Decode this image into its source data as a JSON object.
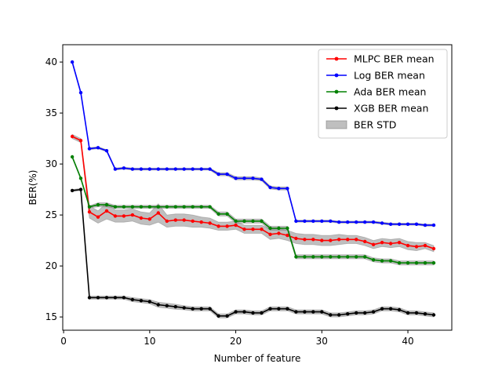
{
  "chart_data": {
    "type": "line",
    "title": "",
    "xlabel": "Number of feature",
    "ylabel": "BER(%)",
    "xlim": [
      -0.1,
      45.1
    ],
    "ylim": [
      13.7,
      41.7
    ],
    "xticks": [
      0,
      10,
      20,
      30,
      40
    ],
    "yticks": [
      15,
      20,
      25,
      30,
      35,
      40
    ],
    "grid": false,
    "legend_position": "top-right",
    "x": [
      1,
      2,
      3,
      4,
      5,
      6,
      7,
      8,
      9,
      10,
      11,
      12,
      13,
      14,
      15,
      16,
      17,
      18,
      19,
      20,
      21,
      22,
      23,
      24,
      25,
      26,
      27,
      28,
      29,
      30,
      31,
      32,
      33,
      34,
      35,
      36,
      37,
      38,
      39,
      40,
      41,
      42,
      43
    ],
    "series": [
      {
        "name": "MLPC BER mean",
        "color": "#ff0000",
        "values": [
          32.7,
          32.3,
          25.3,
          24.8,
          25.4,
          24.9,
          24.9,
          25.0,
          24.7,
          24.6,
          25.2,
          24.4,
          24.5,
          24.5,
          24.4,
          24.3,
          24.2,
          23.9,
          23.9,
          24.0,
          23.6,
          23.6,
          23.6,
          23.1,
          23.2,
          23.0,
          22.7,
          22.6,
          22.6,
          22.5,
          22.5,
          22.6,
          22.6,
          22.6,
          22.4,
          22.1,
          22.3,
          22.2,
          22.3,
          22.0,
          21.9,
          22.0,
          21.7
        ],
        "std": [
          0.2,
          0.2,
          0.6,
          0.6,
          0.8,
          0.6,
          0.6,
          0.6,
          0.6,
          0.6,
          0.9,
          0.6,
          0.6,
          0.6,
          0.6,
          0.5,
          0.5,
          0.4,
          0.4,
          0.4,
          0.4,
          0.4,
          0.4,
          0.5,
          0.5,
          0.5,
          0.5,
          0.5,
          0.5,
          0.5,
          0.5,
          0.5,
          0.4,
          0.4,
          0.4,
          0.4,
          0.4,
          0.4,
          0.4,
          0.4,
          0.4,
          0.3,
          0.3
        ]
      },
      {
        "name": "Log BER mean",
        "color": "#0000ff",
        "values": [
          40.0,
          37.0,
          31.5,
          31.6,
          31.3,
          29.5,
          29.6,
          29.5,
          29.5,
          29.5,
          29.5,
          29.5,
          29.5,
          29.5,
          29.5,
          29.5,
          29.5,
          29.0,
          29.0,
          28.6,
          28.6,
          28.6,
          28.5,
          27.7,
          27.6,
          27.6,
          24.4,
          24.4,
          24.4,
          24.4,
          24.4,
          24.3,
          24.3,
          24.3,
          24.3,
          24.3,
          24.2,
          24.1,
          24.1,
          24.1,
          24.1,
          24.0,
          24.0
        ],
        "std": [
          0.1,
          0.1,
          0.1,
          0.1,
          0.1,
          0.1,
          0.1,
          0.1,
          0.1,
          0.1,
          0.1,
          0.1,
          0.1,
          0.1,
          0.1,
          0.1,
          0.1,
          0.15,
          0.15,
          0.15,
          0.15,
          0.15,
          0.15,
          0.15,
          0.15,
          0.15,
          0.1,
          0.1,
          0.1,
          0.1,
          0.1,
          0.1,
          0.1,
          0.1,
          0.1,
          0.1,
          0.1,
          0.1,
          0.1,
          0.1,
          0.1,
          0.1,
          0.1
        ]
      },
      {
        "name": "Ada BER mean",
        "color": "#008000",
        "values": [
          30.7,
          28.6,
          25.8,
          26.0,
          26.0,
          25.8,
          25.8,
          25.8,
          25.8,
          25.8,
          25.8,
          25.8,
          25.8,
          25.8,
          25.8,
          25.8,
          25.8,
          25.1,
          25.1,
          24.4,
          24.4,
          24.4,
          24.4,
          23.7,
          23.7,
          23.7,
          20.9,
          20.9,
          20.9,
          20.9,
          20.9,
          20.9,
          20.9,
          20.9,
          20.9,
          20.6,
          20.5,
          20.5,
          20.3,
          20.3,
          20.3,
          20.3,
          20.3
        ],
        "std": [
          0.1,
          0.1,
          0.1,
          0.2,
          0.2,
          0.15,
          0.15,
          0.15,
          0.15,
          0.15,
          0.15,
          0.15,
          0.15,
          0.15,
          0.15,
          0.15,
          0.15,
          0.2,
          0.2,
          0.2,
          0.2,
          0.2,
          0.2,
          0.2,
          0.2,
          0.2,
          0.2,
          0.2,
          0.2,
          0.2,
          0.2,
          0.2,
          0.2,
          0.2,
          0.2,
          0.2,
          0.2,
          0.2,
          0.2,
          0.2,
          0.2,
          0.2,
          0.2
        ]
      },
      {
        "name": "XGB BER mean",
        "color": "#000000",
        "values": [
          27.4,
          27.5,
          16.9,
          16.9,
          16.9,
          16.9,
          16.9,
          16.7,
          16.6,
          16.5,
          16.2,
          16.1,
          16.0,
          15.9,
          15.8,
          15.8,
          15.8,
          15.1,
          15.1,
          15.5,
          15.5,
          15.4,
          15.4,
          15.8,
          15.8,
          15.8,
          15.5,
          15.5,
          15.5,
          15.5,
          15.2,
          15.2,
          15.3,
          15.4,
          15.4,
          15.5,
          15.8,
          15.8,
          15.7,
          15.4,
          15.4,
          15.3,
          15.2
        ],
        "std": [
          0.1,
          0.1,
          0.15,
          0.15,
          0.15,
          0.15,
          0.15,
          0.2,
          0.2,
          0.2,
          0.25,
          0.25,
          0.25,
          0.2,
          0.2,
          0.2,
          0.2,
          0.2,
          0.2,
          0.2,
          0.2,
          0.2,
          0.2,
          0.2,
          0.2,
          0.2,
          0.2,
          0.2,
          0.2,
          0.2,
          0.2,
          0.2,
          0.2,
          0.2,
          0.2,
          0.2,
          0.2,
          0.2,
          0.2,
          0.2,
          0.2,
          0.2,
          0.2
        ]
      }
    ],
    "band": {
      "name": "BER STD",
      "color": "#808080"
    }
  }
}
